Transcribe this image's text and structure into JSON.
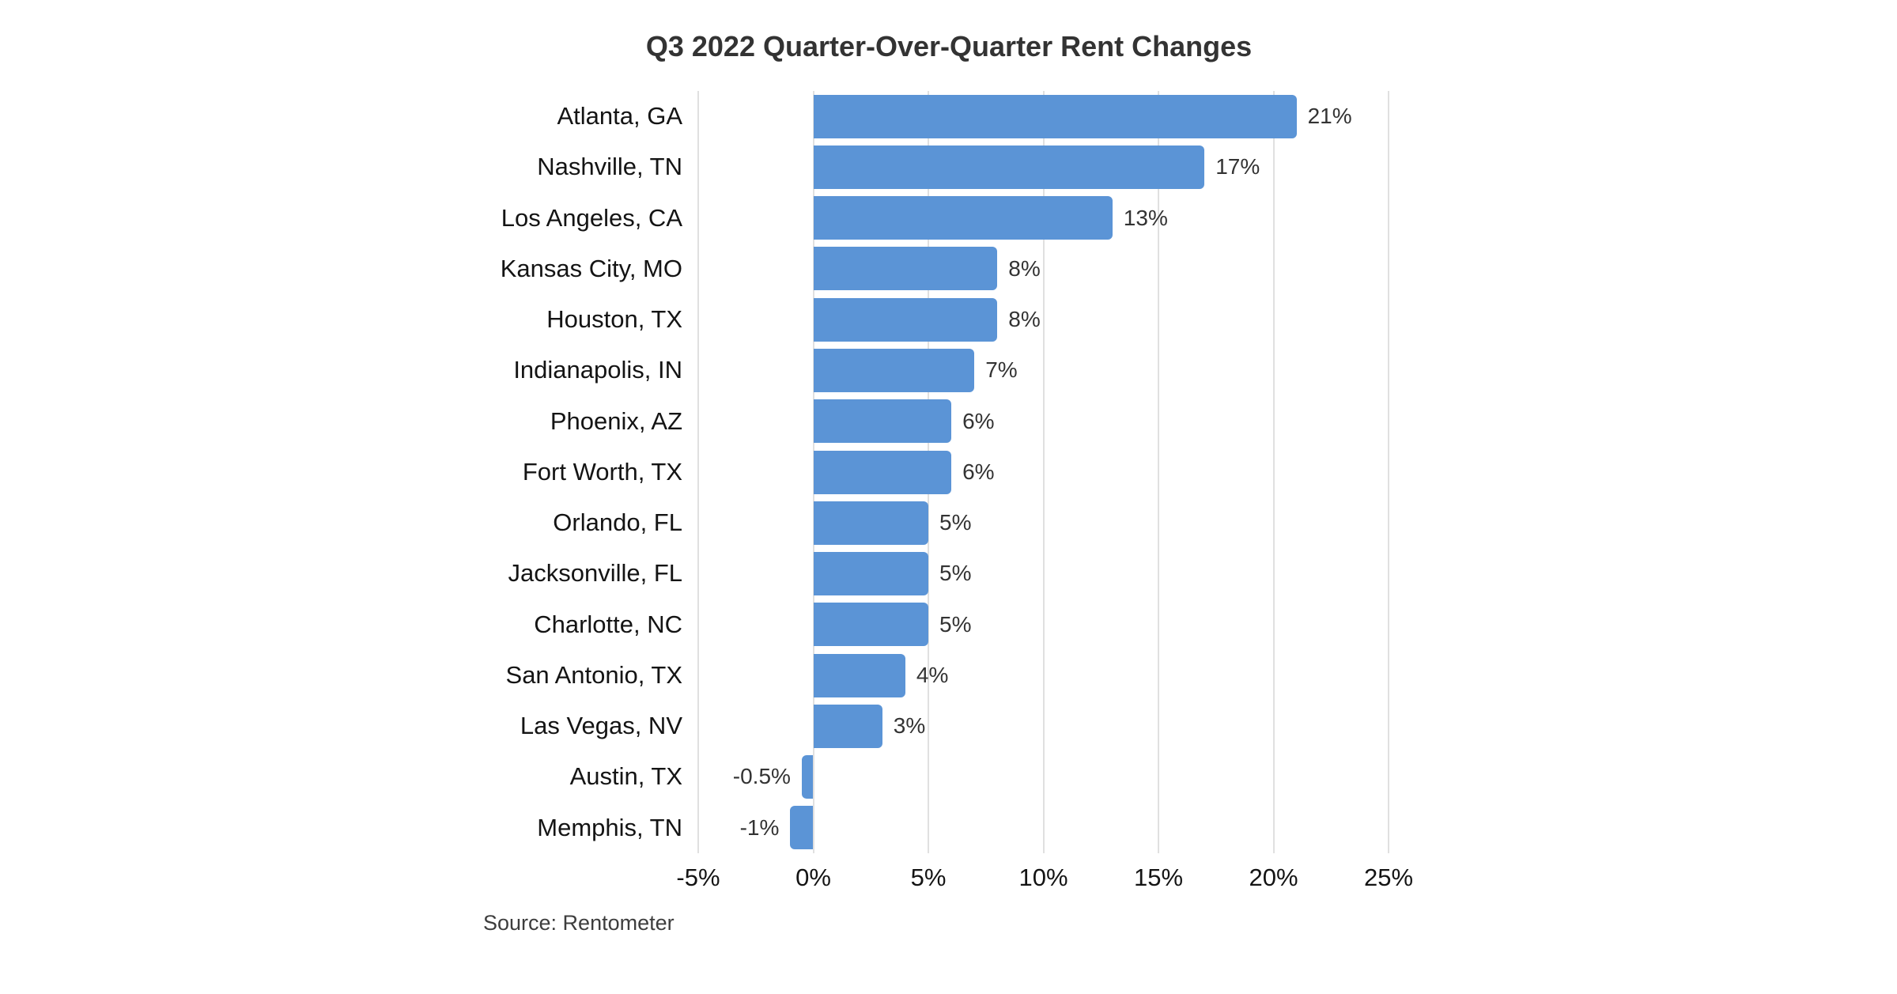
{
  "title": "Q3 2022 Quarter-Over-Quarter Rent Changes",
  "source_note": "Source: Rentometer",
  "colors": {
    "bar": "#5b94d6",
    "grid": "#e0e0e0",
    "title_text": "#333333",
    "category_text": "#141414",
    "value_text": "#333333",
    "tick_text": "#141414",
    "source_text": "#3d3d3d",
    "background": "#ffffff"
  },
  "chart_data": {
    "type": "bar",
    "orientation": "horizontal",
    "title": "Q3 2022 Quarter-Over-Quarter Rent Changes",
    "xlabel": "",
    "ylabel": "",
    "xlim": [
      -5,
      25
    ],
    "grid": true,
    "legend": false,
    "source": "Source: Rentometer",
    "categories": [
      "Atlanta, GA",
      "Nashville, TN",
      "Los Angeles, CA",
      "Kansas City, MO",
      "Houston, TX",
      "Indianapolis, IN",
      "Phoenix, AZ",
      "Fort Worth, TX",
      "Orlando, FL",
      "Jacksonville, FL",
      "Charlotte, NC",
      "San Antonio, TX",
      "Las Vegas, NV",
      "Austin, TX",
      "Memphis, TN"
    ],
    "values": [
      21,
      17,
      13,
      8,
      8,
      7,
      6,
      6,
      5,
      5,
      5,
      4,
      3,
      -0.5,
      -1
    ],
    "value_labels": [
      "21%",
      "17%",
      "13%",
      "8%",
      "8%",
      "7%",
      "6%",
      "6%",
      "5%",
      "5%",
      "5%",
      "4%",
      "3%",
      "-0.5%",
      "-1%"
    ],
    "x_ticks": [
      -5,
      0,
      5,
      10,
      15,
      20,
      25
    ],
    "x_tick_labels": [
      "-5%",
      "0%",
      "5%",
      "10%",
      "15%",
      "20%",
      "25%"
    ]
  }
}
